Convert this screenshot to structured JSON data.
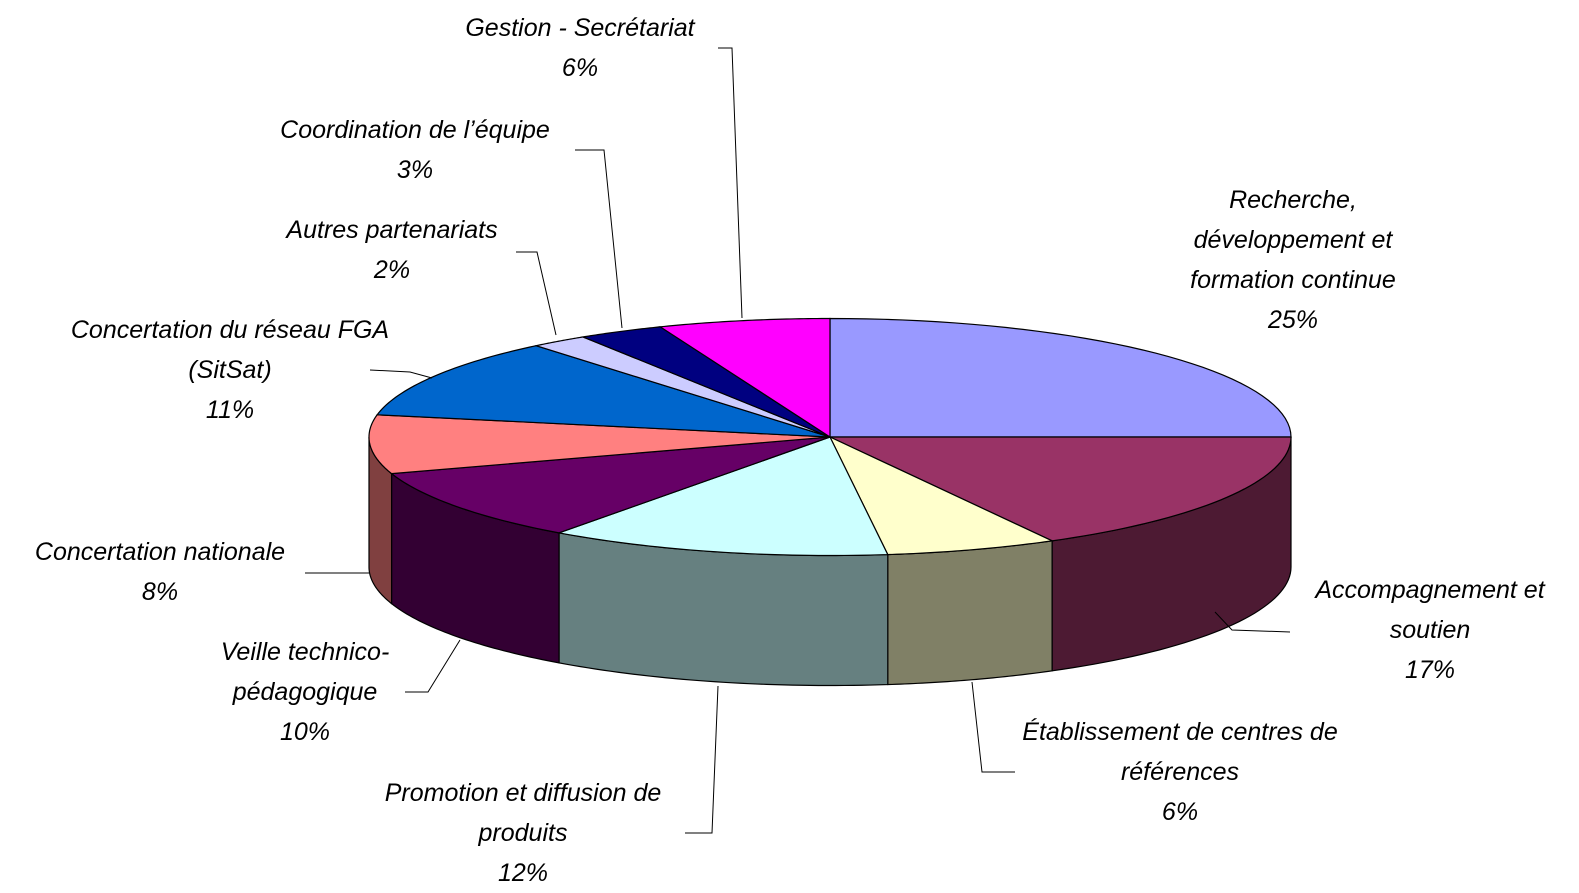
{
  "chart_data": {
    "type": "pie3d",
    "categories": [
      "Recherche, développement et formation continue",
      "Accompagnement et soutien",
      "Établissement de centres de références",
      "Promotion et diffusion de produits",
      "Veille technico-pédagogique",
      "Concertation nationale",
      "Concertation du réseau FGA (SitSat)",
      "Autres partenariats",
      "Coordination de l’équipe",
      "Gestion - Secrétariat"
    ],
    "values": [
      25,
      17,
      6,
      12,
      10,
      8,
      11,
      2,
      3,
      6
    ],
    "value_labels": [
      "25%",
      "17%",
      "6%",
      "12%",
      "10%",
      "8%",
      "11%",
      "2%",
      "3%",
      "6%"
    ],
    "colors": [
      "#9999ff",
      "#993366",
      "#ffffcc",
      "#ccffff",
      "#660066",
      "#ff8080",
      "#0066cc",
      "#ccccff",
      "#000080",
      "#ff00ff"
    ]
  }
}
